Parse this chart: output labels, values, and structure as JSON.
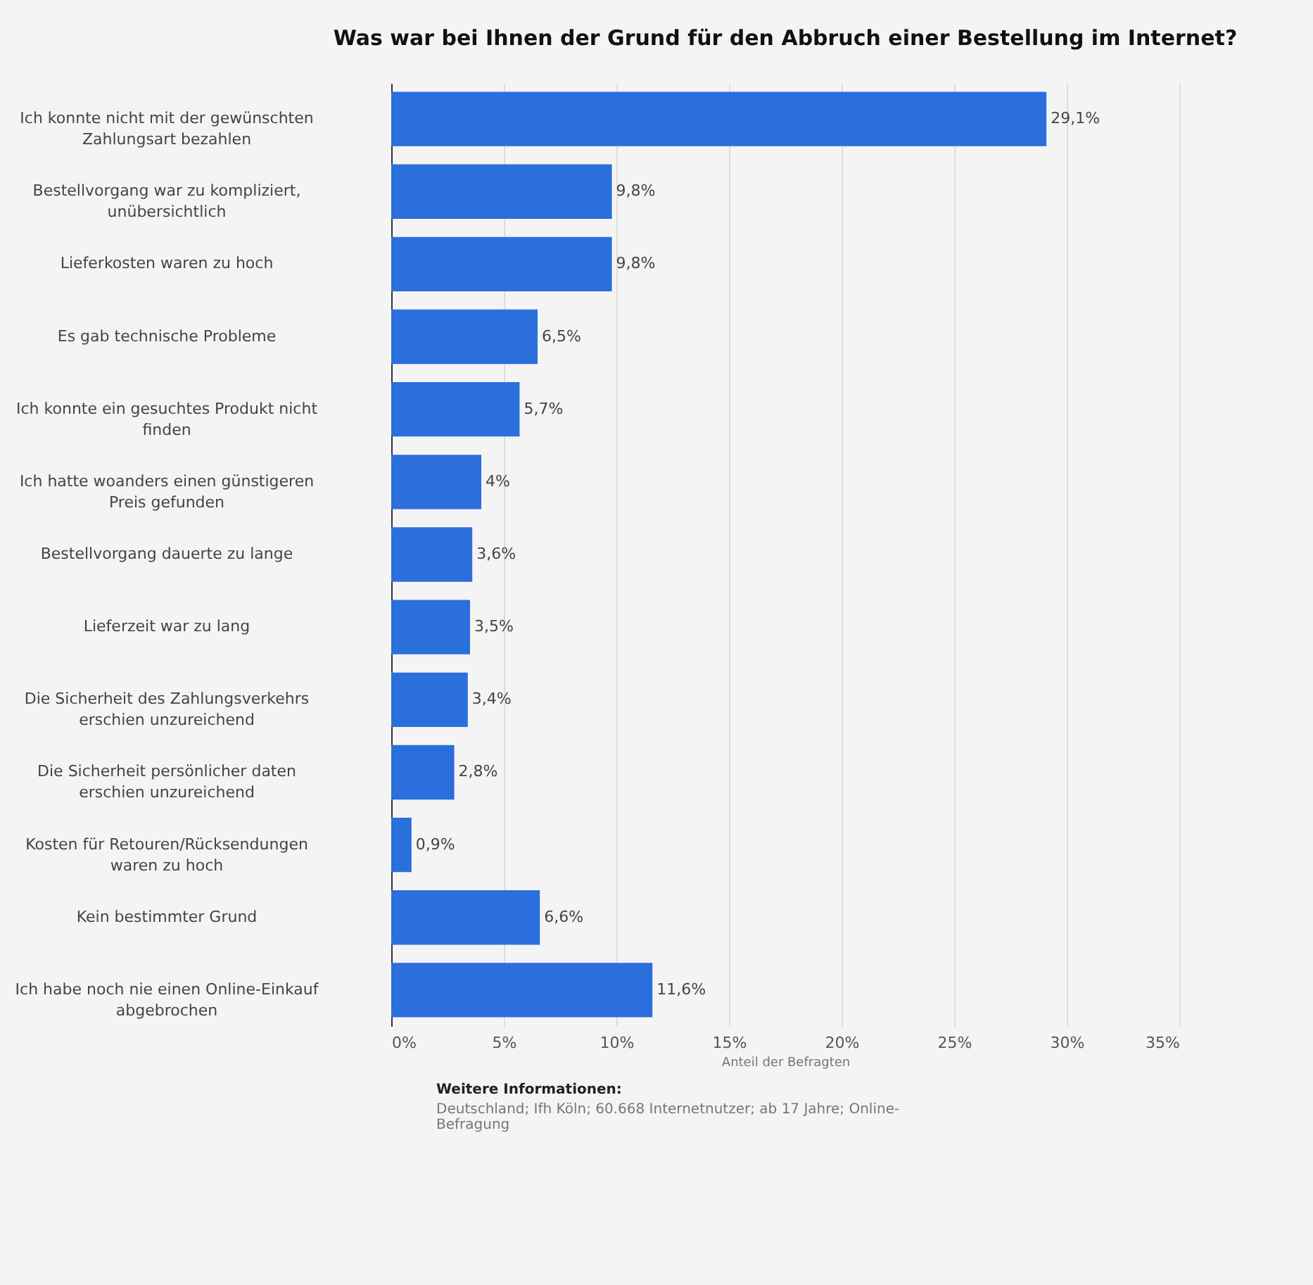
{
  "chart_data": {
    "type": "bar",
    "orientation": "horizontal",
    "title": "Was war bei Ihnen der Grund für den Abbruch einer Bestellung im Internet?",
    "categories": [
      "Ich konnte nicht mit der gewünschten Zahlungsart bezahlen",
      "Bestellvorgang war zu kompliziert, unübersichtlich",
      "Lieferkosten waren zu hoch",
      "Es gab technische Probleme",
      "Ich konnte ein gesuchtes Produkt nicht finden",
      "Ich hatte woanders einen günstigeren Preis gefunden",
      "Bestellvorgang dauerte zu lange",
      "Lieferzeit war zu lang",
      "Die Sicherheit des Zahlungsverkehrs erschien unzureichend",
      "Die Sicherheit persönlicher daten erschien unzureichend",
      "Kosten für Retouren/Rücksendungen waren zu hoch",
      "Kein bestimmter Grund",
      "Ich habe noch nie einen Online-Einkauf abgebrochen"
    ],
    "values": [
      29.1,
      9.8,
      9.8,
      6.5,
      5.7,
      4,
      3.6,
      3.5,
      3.4,
      2.8,
      0.9,
      6.6,
      11.6
    ],
    "value_labels": [
      "29,1%",
      "9,8%",
      "9,8%",
      "6,5%",
      "5,7%",
      "4%",
      "3,6%",
      "3,5%",
      "3,4%",
      "2,8%",
      "0,9%",
      "6,6%",
      "11,6%"
    ],
    "color": "#2a6fdb",
    "xlabel": "Anteil der Befragten",
    "xlim": [
      0,
      35
    ],
    "xticks": [
      {
        "value": 0,
        "label": "0%"
      },
      {
        "value": 5,
        "label": "5%"
      },
      {
        "value": 10,
        "label": "10%"
      },
      {
        "value": 15,
        "label": "15%"
      },
      {
        "value": 20,
        "label": "20%"
      },
      {
        "value": 25,
        "label": "25%"
      },
      {
        "value": 30,
        "label": "30%"
      },
      {
        "value": 35,
        "label": "35%"
      }
    ],
    "grid": "x",
    "annotations": [
      "Weitere Informationen:",
      "Deutschland; Ifh Köln; 60.668 Internetnutzer; ab 17 Jahre; Online-Befragung"
    ]
  }
}
